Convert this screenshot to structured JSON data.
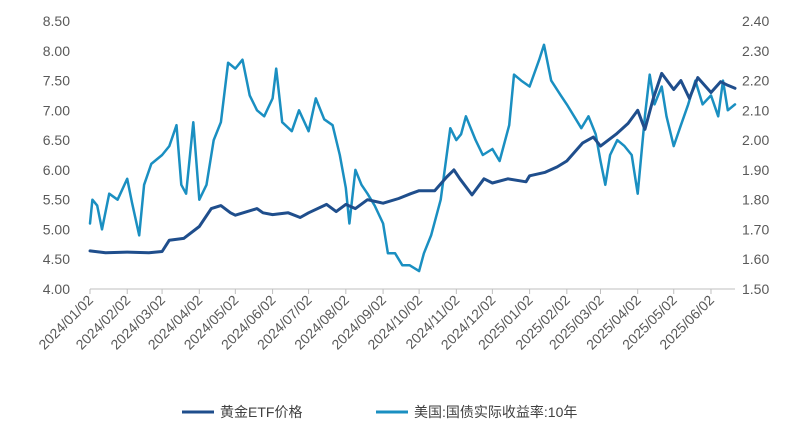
{
  "chart_data": {
    "type": "line",
    "x_ticks": [
      "2024/01/02",
      "2024/02/02",
      "2024/03/02",
      "2024/04/02",
      "2024/05/02",
      "2024/06/02",
      "2024/07/02",
      "2024/08/02",
      "2024/09/02",
      "2024/10/02",
      "2024/11/02",
      "2024/12/02",
      "2025/01/02",
      "2025/02/02",
      "2025/03/02",
      "2025/04/02",
      "2025/05/02",
      "2025/06/02"
    ],
    "y_left": {
      "min": 4.0,
      "max": 8.5,
      "ticks": [
        "4.00",
        "4.50",
        "5.00",
        "5.50",
        "6.00",
        "6.50",
        "7.00",
        "7.50",
        "8.00",
        "8.50"
      ]
    },
    "y_right": {
      "min": 1.5,
      "max": 2.4,
      "ticks": [
        "1.50",
        "1.60",
        "1.70",
        "1.80",
        "1.90",
        "2.00",
        "2.10",
        "2.20",
        "2.30",
        "2.40"
      ]
    },
    "grid": false,
    "legend_position": "bottom",
    "series": [
      {
        "name": "黄金ETF价格",
        "axis": "left",
        "color": "#1f4e8c",
        "points": [
          [
            "2024/01/02",
            4.64
          ],
          [
            "2024/01/15",
            4.61
          ],
          [
            "2024/02/02",
            4.62
          ],
          [
            "2024/02/20",
            4.61
          ],
          [
            "2024/03/02",
            4.63
          ],
          [
            "2024/03/08",
            4.82
          ],
          [
            "2024/03/20",
            4.85
          ],
          [
            "2024/04/02",
            5.05
          ],
          [
            "2024/04/12",
            5.35
          ],
          [
            "2024/04/20",
            5.4
          ],
          [
            "2024/04/28",
            5.28
          ],
          [
            "2024/05/02",
            5.24
          ],
          [
            "2024/05/20",
            5.35
          ],
          [
            "2024/05/25",
            5.28
          ],
          [
            "2024/06/02",
            5.25
          ],
          [
            "2024/06/15",
            5.28
          ],
          [
            "2024/06/25",
            5.2
          ],
          [
            "2024/07/02",
            5.28
          ],
          [
            "2024/07/17",
            5.42
          ],
          [
            "2024/07/25",
            5.3
          ],
          [
            "2024/08/02",
            5.42
          ],
          [
            "2024/08/10",
            5.35
          ],
          [
            "2024/08/20",
            5.5
          ],
          [
            "2024/09/02",
            5.44
          ],
          [
            "2024/09/15",
            5.52
          ],
          [
            "2024/09/25",
            5.6
          ],
          [
            "2024/10/02",
            5.65
          ],
          [
            "2024/10/15",
            5.65
          ],
          [
            "2024/10/25",
            5.88
          ],
          [
            "2024/10/31",
            6.0
          ],
          [
            "2024/11/05",
            5.85
          ],
          [
            "2024/11/15",
            5.58
          ],
          [
            "2024/11/25",
            5.85
          ],
          [
            "2024/12/02",
            5.78
          ],
          [
            "2024/12/15",
            5.85
          ],
          [
            "2024/12/30",
            5.8
          ],
          [
            "2025/01/02",
            5.9
          ],
          [
            "2025/01/15",
            5.96
          ],
          [
            "2025/01/25",
            6.05
          ],
          [
            "2025/02/02",
            6.15
          ],
          [
            "2025/02/15",
            6.45
          ],
          [
            "2025/02/24",
            6.55
          ],
          [
            "2025/03/02",
            6.4
          ],
          [
            "2025/03/15",
            6.6
          ],
          [
            "2025/03/25",
            6.78
          ],
          [
            "2025/04/02",
            7.0
          ],
          [
            "2025/04/08",
            6.68
          ],
          [
            "2025/04/15",
            7.2
          ],
          [
            "2025/04/22",
            7.62
          ],
          [
            "2025/05/02",
            7.35
          ],
          [
            "2025/05/08",
            7.5
          ],
          [
            "2025/05/15",
            7.2
          ],
          [
            "2025/05/22",
            7.55
          ],
          [
            "2025/06/02",
            7.3
          ],
          [
            "2025/06/10",
            7.48
          ],
          [
            "2025/06/16",
            7.42
          ],
          [
            "2025/06/22",
            7.37
          ]
        ]
      },
      {
        "name": "美国:国债实际收益率:10年",
        "axis": "right",
        "color": "#1a8fc1",
        "points": [
          [
            "2024/01/02",
            1.72
          ],
          [
            "2024/01/04",
            1.8
          ],
          [
            "2024/01/08",
            1.78
          ],
          [
            "2024/01/12",
            1.7
          ],
          [
            "2024/01/18",
            1.82
          ],
          [
            "2024/01/25",
            1.8
          ],
          [
            "2024/02/02",
            1.87
          ],
          [
            "2024/02/06",
            1.79
          ],
          [
            "2024/02/12",
            1.68
          ],
          [
            "2024/02/16",
            1.85
          ],
          [
            "2024/02/22",
            1.92
          ],
          [
            "2024/03/02",
            1.95
          ],
          [
            "2024/03/08",
            1.98
          ],
          [
            "2024/03/14",
            2.05
          ],
          [
            "2024/03/18",
            1.85
          ],
          [
            "2024/03/22",
            1.82
          ],
          [
            "2024/03/28",
            2.06
          ],
          [
            "2024/04/02",
            1.8
          ],
          [
            "2024/04/08",
            1.85
          ],
          [
            "2024/04/14",
            2.0
          ],
          [
            "2024/04/20",
            2.06
          ],
          [
            "2024/04/26",
            2.26
          ],
          [
            "2024/05/02",
            2.24
          ],
          [
            "2024/05/08",
            2.27
          ],
          [
            "2024/05/14",
            2.15
          ],
          [
            "2024/05/20",
            2.1
          ],
          [
            "2024/05/26",
            2.08
          ],
          [
            "2024/06/02",
            2.14
          ],
          [
            "2024/06/05",
            2.24
          ],
          [
            "2024/06/10",
            2.06
          ],
          [
            "2024/06/18",
            2.03
          ],
          [
            "2024/06/24",
            2.1
          ],
          [
            "2024/07/02",
            2.03
          ],
          [
            "2024/07/08",
            2.14
          ],
          [
            "2024/07/15",
            2.07
          ],
          [
            "2024/07/22",
            2.05
          ],
          [
            "2024/07/28",
            1.95
          ],
          [
            "2024/08/02",
            1.84
          ],
          [
            "2024/08/05",
            1.72
          ],
          [
            "2024/08/10",
            1.9
          ],
          [
            "2024/08/15",
            1.85
          ],
          [
            "2024/08/20",
            1.82
          ],
          [
            "2024/08/26",
            1.78
          ],
          [
            "2024/09/02",
            1.72
          ],
          [
            "2024/09/06",
            1.62
          ],
          [
            "2024/09/12",
            1.62
          ],
          [
            "2024/09/18",
            1.58
          ],
          [
            "2024/09/24",
            1.58
          ],
          [
            "2024/10/02",
            1.56
          ],
          [
            "2024/10/06",
            1.62
          ],
          [
            "2024/10/12",
            1.68
          ],
          [
            "2024/10/20",
            1.8
          ],
          [
            "2024/10/28",
            2.04
          ],
          [
            "2024/11/02",
            2.0
          ],
          [
            "2024/11/06",
            2.02
          ],
          [
            "2024/11/10",
            2.08
          ],
          [
            "2024/11/18",
            2.0
          ],
          [
            "2024/11/24",
            1.95
          ],
          [
            "2024/12/02",
            1.97
          ],
          [
            "2024/12/08",
            1.93
          ],
          [
            "2024/12/16",
            2.05
          ],
          [
            "2024/12/20",
            2.22
          ],
          [
            "2024/12/26",
            2.2
          ],
          [
            "2025/01/02",
            2.18
          ],
          [
            "2025/01/10",
            2.27
          ],
          [
            "2025/01/14",
            2.32
          ],
          [
            "2025/01/20",
            2.2
          ],
          [
            "2025/01/28",
            2.15
          ],
          [
            "2025/02/02",
            2.12
          ],
          [
            "2025/02/08",
            2.08
          ],
          [
            "2025/02/14",
            2.04
          ],
          [
            "2025/02/20",
            2.08
          ],
          [
            "2025/02/26",
            2.02
          ],
          [
            "2025/03/02",
            1.93
          ],
          [
            "2025/03/06",
            1.85
          ],
          [
            "2025/03/10",
            1.95
          ],
          [
            "2025/03/16",
            2.0
          ],
          [
            "2025/03/22",
            1.98
          ],
          [
            "2025/03/28",
            1.95
          ],
          [
            "2025/04/02",
            1.82
          ],
          [
            "2025/04/08",
            2.08
          ],
          [
            "2025/04/12",
            2.22
          ],
          [
            "2025/04/16",
            2.12
          ],
          [
            "2025/04/22",
            2.18
          ],
          [
            "2025/04/26",
            2.08
          ],
          [
            "2025/05/02",
            1.98
          ],
          [
            "2025/05/08",
            2.05
          ],
          [
            "2025/05/14",
            2.12
          ],
          [
            "2025/05/20",
            2.2
          ],
          [
            "2025/05/26",
            2.12
          ],
          [
            "2025/06/02",
            2.15
          ],
          [
            "2025/06/08",
            2.08
          ],
          [
            "2025/06/12",
            2.2
          ],
          [
            "2025/06/16",
            2.1
          ],
          [
            "2025/06/22",
            2.12
          ]
        ]
      }
    ]
  }
}
